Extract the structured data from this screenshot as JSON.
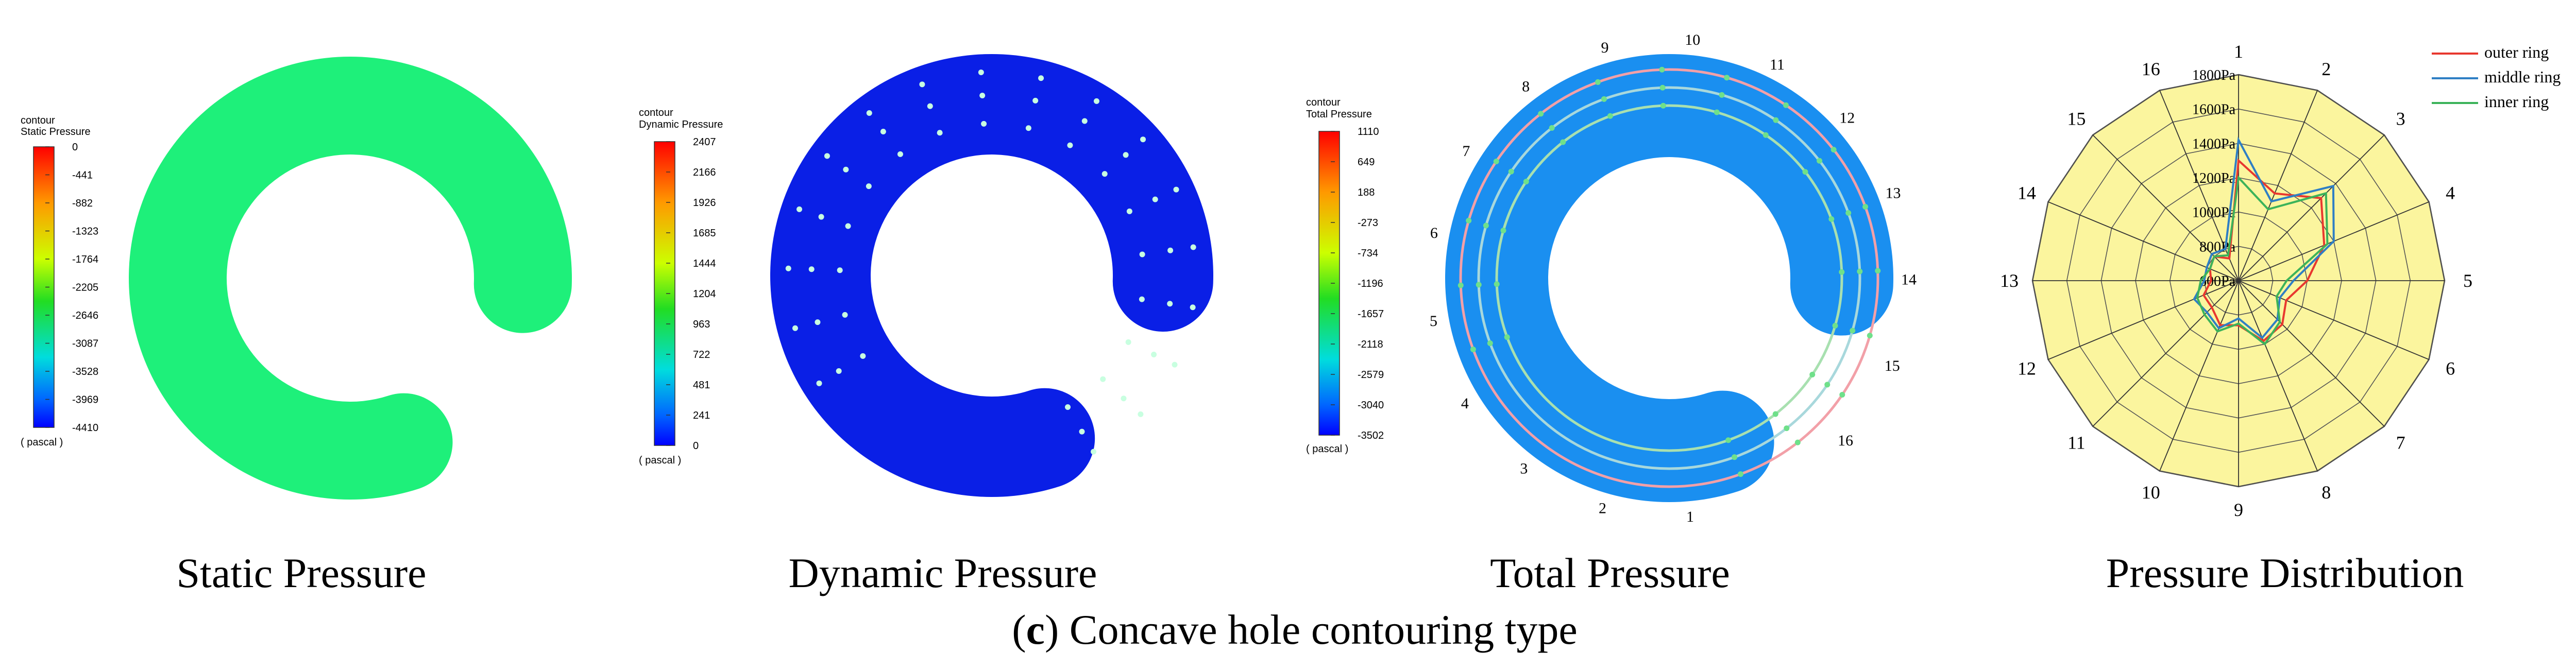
{
  "panels": {
    "static": {
      "legend_label": "contour",
      "legend_title": "Static Pressure",
      "ticks": [
        "0",
        "-441",
        "-882",
        "-1323",
        "-1764",
        "-2205",
        "-2646",
        "-3087",
        "-3528",
        "-3969",
        "-4410"
      ],
      "unit": "( pascal )",
      "caption": "Static Pressure",
      "fill_color": "#1ef07a"
    },
    "dynamic": {
      "legend_label": "contour",
      "legend_title": "Dynamic Pressure",
      "ticks": [
        "2407",
        "2166",
        "1926",
        "1685",
        "1444",
        "1204",
        "963",
        "722",
        "481",
        "241",
        "0"
      ],
      "unit": "( pascal )",
      "caption": "Dynamic Pressure",
      "fill_color": "#0a1fe6"
    },
    "total": {
      "legend_label": "contour",
      "legend_title": "Total Pressure",
      "ticks": [
        "1110",
        "649",
        "188",
        "-273",
        "-734",
        "-1196",
        "-1657",
        "-2118",
        "-2579",
        "-3040",
        "-3502"
      ],
      "unit": "( pascal )",
      "caption": "Total Pressure",
      "fill_color": "#1a8ff0",
      "point_labels": [
        "1",
        "2",
        "3",
        "4",
        "5",
        "6",
        "7",
        "8",
        "9",
        "10",
        "11",
        "12",
        "13",
        "14",
        "15",
        "16"
      ]
    },
    "distribution": {
      "caption": "Pressure Distribution"
    }
  },
  "figure_caption": {
    "prefix": "(",
    "letter": "c",
    "text": ") Concave hole contouring type"
  },
  "chart_data": {
    "type": "radar",
    "title": "Pressure Distribution",
    "categories": [
      "1",
      "2",
      "3",
      "4",
      "5",
      "6",
      "7",
      "8",
      "9",
      "10",
      "11",
      "12",
      "13",
      "14",
      "15",
      "16"
    ],
    "radial_ticks": [
      "600Pa",
      "800Pa",
      "1000Pa",
      "1200Pa",
      "1400Pa",
      "1600Pa",
      "1800Pa"
    ],
    "rlim": [
      600,
      1800
    ],
    "grid": true,
    "legend_position": "top-right",
    "series": [
      {
        "name": "outer ring",
        "color": "#e8382f",
        "values": [
          1300,
          1150,
          1280,
          1140,
          1000,
          900,
          960,
          980,
          860,
          880,
          820,
          820,
          760,
          780,
          800,
          740
        ]
      },
      {
        "name": "middle ring",
        "color": "#2f7fc4",
        "values": [
          1420,
          1100,
          1380,
          1200,
          920,
          860,
          920,
          960,
          820,
          900,
          860,
          880,
          800,
          800,
          820,
          800
        ]
      },
      {
        "name": "inner ring",
        "color": "#3cb35a",
        "values": [
          1200,
          1050,
          1320,
          1160,
          880,
          840,
          940,
          1000,
          850,
          920,
          880,
          860,
          820,
          780,
          800,
          760
        ]
      }
    ]
  }
}
